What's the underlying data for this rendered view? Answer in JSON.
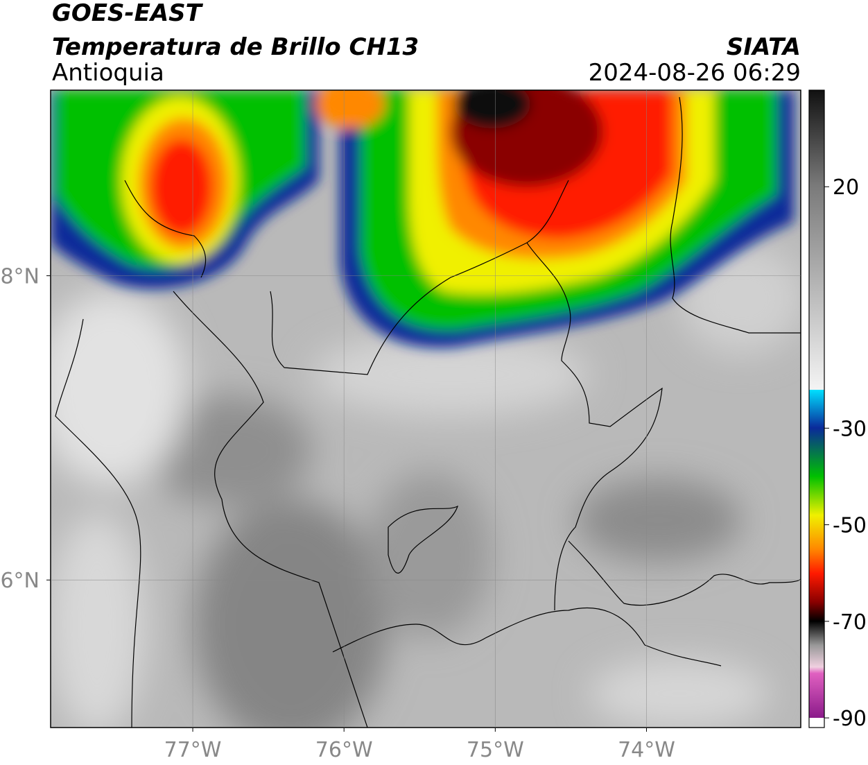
{
  "map": {
    "title": "GOES-EAST",
    "subtitle": "Temperatura de Brillo CH13",
    "region": "Antioquia",
    "source": "SIATA",
    "timestamp": "2024-08-26 06:29",
    "xlim": [
      -77.94,
      -72.98
    ],
    "ylim": [
      5.03,
      9.22
    ],
    "xticks": [
      {
        "value": -77,
        "label": "77°W"
      },
      {
        "value": -76,
        "label": "76°W"
      },
      {
        "value": -75,
        "label": "75°W"
      },
      {
        "value": -74,
        "label": "74°W"
      }
    ],
    "yticks": [
      {
        "value": 8,
        "label": "8°N"
      },
      {
        "value": 6,
        "label": "6°N"
      }
    ],
    "grid": true,
    "colorbar": {
      "lim": [
        -92,
        40
      ],
      "ticks": [
        20,
        -30,
        -50,
        -70,
        -90
      ]
    }
  }
}
